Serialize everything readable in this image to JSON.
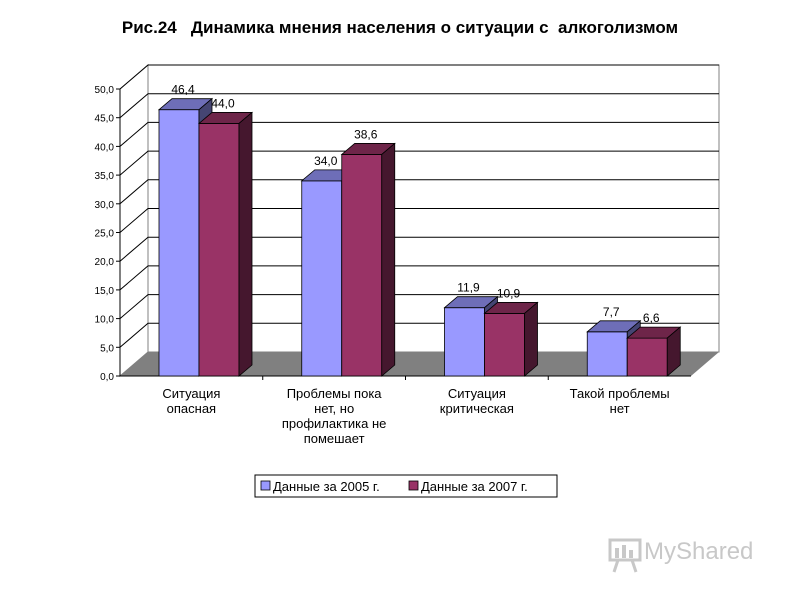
{
  "chart_data": {
    "type": "bar",
    "title": "Рис.24   Динамика мнения населения о ситуации с  алкоголизмом",
    "categories": [
      [
        "Ситуация",
        "опасная"
      ],
      [
        "Проблемы пока",
        "нет, но",
        "профилактика не",
        "помешает"
      ],
      [
        "Ситуация",
        "критическая"
      ],
      [
        "Такой проблемы",
        "нет"
      ]
    ],
    "series": [
      {
        "name": "Данные за 2005 г.",
        "values": [
          46.4,
          34.0,
          11.9,
          7.7
        ],
        "labels": [
          "46,4",
          "34,0",
          "11,9",
          "7,7"
        ],
        "color": "#9999ff"
      },
      {
        "name": "Данные за 2007 г.",
        "values": [
          44.0,
          38.6,
          10.9,
          6.6
        ],
        "labels": [
          "44,0",
          "38,6",
          "10,9",
          "6,6"
        ],
        "color": "#993366"
      }
    ],
    "ylim": [
      0,
      50
    ],
    "yticks": [
      "0,0",
      "5,0",
      "10,0",
      "15,0",
      "20,0",
      "25,0",
      "30,0",
      "35,0",
      "40,0",
      "45,0",
      "50,0"
    ],
    "grid": true,
    "legend": "bottom",
    "xlabel": "",
    "ylabel": ""
  },
  "watermark": {
    "text": "MyShared"
  },
  "colors": {
    "floor": "#808080",
    "grid": "#000000"
  }
}
